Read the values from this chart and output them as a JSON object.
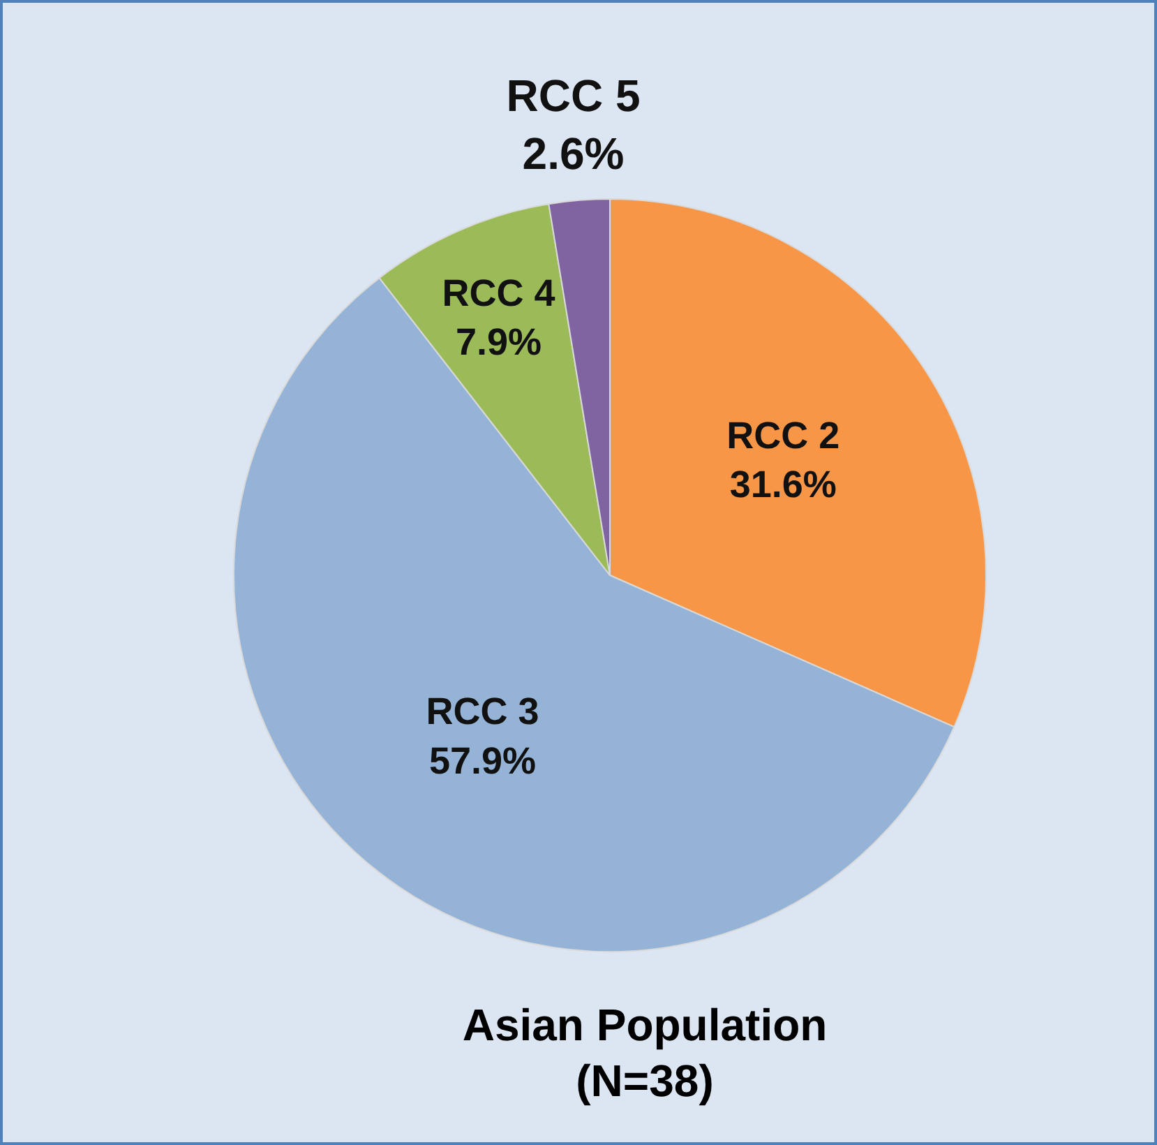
{
  "chart_data": {
    "type": "pie",
    "title": "Asian Population (N=38)",
    "categories": [
      "RCC 2",
      "RCC 3",
      "RCC 4",
      "RCC 5"
    ],
    "values": [
      31.6,
      57.9,
      7.9,
      2.6
    ],
    "value_labels": [
      "31.6%",
      "57.9%",
      "7.9%",
      "2.6%"
    ],
    "colors": [
      "#f79646",
      "#95b3d7",
      "#9bbb59",
      "#8064a2"
    ]
  }
}
